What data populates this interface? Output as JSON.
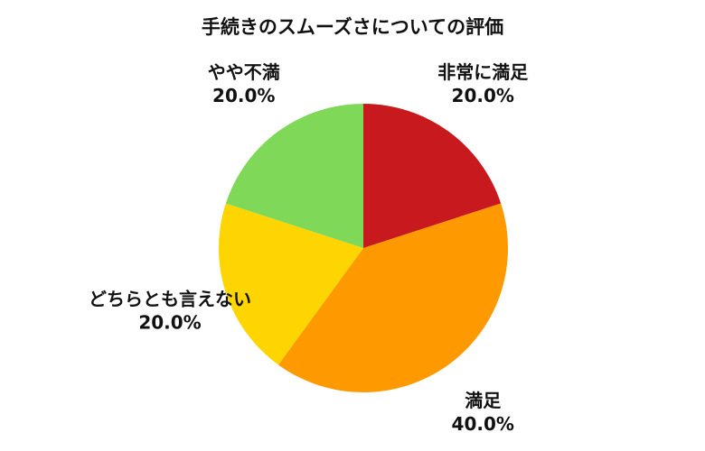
{
  "chart_data": {
    "type": "pie",
    "title": "手続きのスムーズさについての評価",
    "slices": [
      {
        "label": "非常に満足",
        "value": 20.0,
        "value_label": "20.0%",
        "color": "#c8191f"
      },
      {
        "label": "満足",
        "value": 40.0,
        "value_label": "40.0%",
        "color": "#ff9900"
      },
      {
        "label": "どちらとも言えない",
        "value": 20.0,
        "value_label": "20.0%",
        "color": "#ffd500"
      },
      {
        "label": "やや不満",
        "value": 20.0,
        "value_label": "20.0%",
        "color": "#7fd857"
      }
    ],
    "start_angle": "12 o'clock",
    "direction": "clockwise"
  }
}
